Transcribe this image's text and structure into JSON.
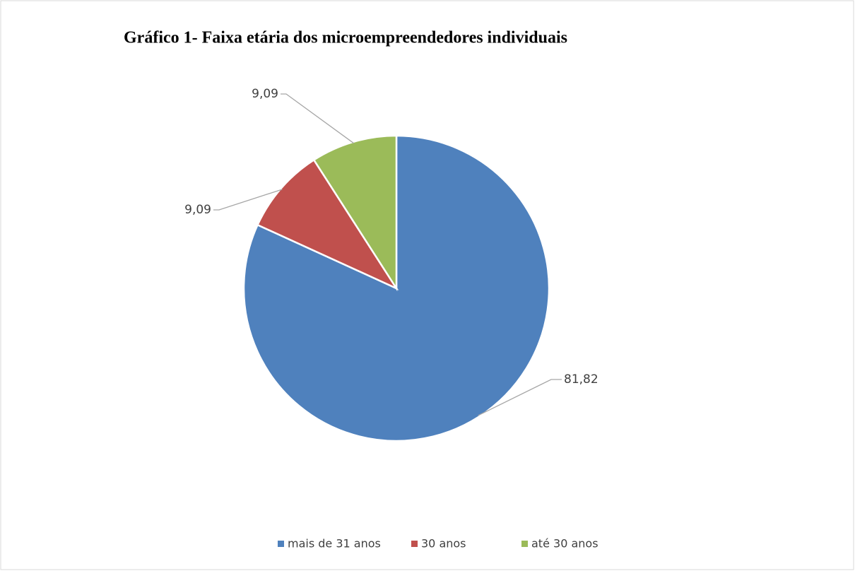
{
  "chart_data": {
    "type": "pie",
    "title": "Gráfico 1- Faixa etária dos microempreendedores individuais",
    "categories": [
      "mais de 31 anos",
      "30 anos",
      "até 30 anos"
    ],
    "values": [
      81.82,
      9.09,
      9.09
    ],
    "value_labels": [
      "81,82",
      "9,09",
      "9,09"
    ],
    "colors": [
      "#4f81bd",
      "#c0504d",
      "#9bbb59"
    ],
    "legend": "bottom"
  }
}
